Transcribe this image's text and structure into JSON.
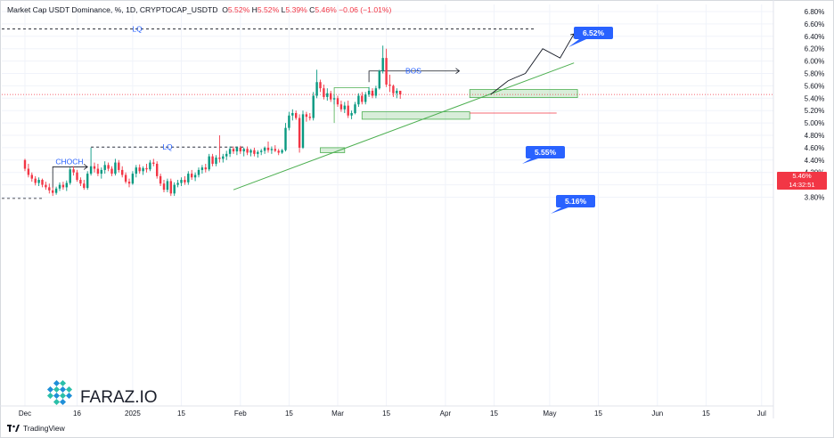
{
  "legend": {
    "symbol": "Market Cap USDT Dominance, %, 1D, CRYPTOCAP_USDTD",
    "o_label": "O",
    "o_value": "5.52%",
    "h_label": "H",
    "h_value": "5.52%",
    "l_label": "L",
    "l_value": "5.39%",
    "c_label": "C",
    "c_value": "5.46%",
    "change": "−0.06 (−1.01%)"
  },
  "last_price": {
    "value": "5.46%",
    "countdown": "14:32:51"
  },
  "footer": {
    "brand": "TradingView"
  },
  "watermark": {
    "text": "FARAZ.IO"
  },
  "colors": {
    "up": "#089981",
    "down": "#f23645",
    "annotation": "#2962ff",
    "zone": "#4caf50",
    "trendline": "#4caf50"
  },
  "chart_data": {
    "type": "candlestick",
    "y_scale": {
      "min": 3.7,
      "max": 6.85,
      "unit": "%"
    },
    "y_ticks": [
      "6.80%",
      "6.60%",
      "6.40%",
      "6.20%",
      "6.00%",
      "5.80%",
      "5.60%",
      "5.40%",
      "5.20%",
      "5.00%",
      "4.80%",
      "4.60%",
      "4.40%",
      "4.20%",
      "4.00%",
      "3.80%"
    ],
    "y_tick_values": [
      6.8,
      6.6,
      6.4,
      6.2,
      6.0,
      5.8,
      5.6,
      5.4,
      5.2,
      5.0,
      4.8,
      4.6,
      4.4,
      4.2,
      4.0,
      3.8
    ],
    "x_ticks": [
      {
        "label": "Dec",
        "day": 0
      },
      {
        "label": "16",
        "day": 15
      },
      {
        "label": "2025",
        "day": 31
      },
      {
        "label": "15",
        "day": 45
      },
      {
        "label": "Feb",
        "day": 62
      },
      {
        "label": "15",
        "day": 76
      },
      {
        "label": "Mar",
        "day": 90
      },
      {
        "label": "15",
        "day": 104
      },
      {
        "label": "Apr",
        "day": 121
      },
      {
        "label": "15",
        "day": 135
      },
      {
        "label": "May",
        "day": 151
      },
      {
        "label": "15",
        "day": 165
      },
      {
        "label": "Jun",
        "day": 182
      },
      {
        "label": "15",
        "day": 196
      },
      {
        "label": "Jul",
        "day": 212
      }
    ],
    "x_start": "2024-12-01",
    "candles": [
      [
        4.4,
        4.42,
        4.22,
        4.26
      ],
      [
        4.26,
        4.34,
        4.12,
        4.16
      ],
      [
        4.16,
        4.2,
        4.05,
        4.1
      ],
      [
        4.1,
        4.14,
        3.99,
        4.03
      ],
      [
        4.03,
        4.12,
        3.98,
        4.08
      ],
      [
        4.08,
        4.1,
        3.96,
        4.0
      ],
      [
        4.0,
        4.05,
        3.92,
        3.96
      ],
      [
        3.96,
        4.02,
        3.86,
        3.91
      ],
      [
        3.91,
        3.96,
        3.82,
        3.87
      ],
      [
        3.87,
        3.97,
        3.84,
        3.94
      ],
      [
        3.94,
        4.04,
        3.9,
        4.0
      ],
      [
        4.0,
        4.05,
        3.92,
        3.96
      ],
      [
        3.96,
        4.07,
        3.9,
        4.03
      ],
      [
        4.03,
        4.28,
        4.0,
        4.25
      ],
      [
        4.25,
        4.3,
        4.15,
        4.2
      ],
      [
        4.2,
        4.24,
        4.05,
        4.08
      ],
      [
        4.08,
        4.12,
        3.98,
        4.02
      ],
      [
        4.02,
        4.08,
        3.92,
        3.95
      ],
      [
        3.95,
        4.22,
        3.92,
        4.18
      ],
      [
        4.18,
        4.6,
        4.15,
        4.3
      ],
      [
        4.3,
        4.36,
        4.2,
        4.26
      ],
      [
        4.26,
        4.34,
        4.14,
        4.18
      ],
      [
        4.18,
        4.28,
        4.1,
        4.24
      ],
      [
        4.24,
        4.38,
        4.18,
        4.32
      ],
      [
        4.32,
        4.36,
        4.22,
        4.26
      ],
      [
        4.26,
        4.3,
        4.14,
        4.18
      ],
      [
        4.18,
        4.42,
        4.15,
        4.36
      ],
      [
        4.36,
        4.4,
        4.2,
        4.24
      ],
      [
        4.24,
        4.3,
        4.12,
        4.16
      ],
      [
        4.16,
        4.2,
        4.02,
        4.05
      ],
      [
        4.05,
        4.1,
        3.96,
        4.02
      ],
      [
        4.02,
        4.22,
        4.0,
        4.18
      ],
      [
        4.18,
        4.32,
        4.12,
        4.28
      ],
      [
        4.28,
        4.33,
        4.18,
        4.22
      ],
      [
        4.22,
        4.3,
        4.16,
        4.27
      ],
      [
        4.27,
        4.34,
        4.2,
        4.25
      ],
      [
        4.25,
        4.4,
        4.22,
        4.36
      ],
      [
        4.36,
        4.42,
        4.3,
        4.34
      ],
      [
        4.34,
        4.38,
        4.1,
        4.14
      ],
      [
        4.14,
        4.18,
        3.98,
        4.02
      ],
      [
        4.02,
        4.08,
        3.88,
        3.92
      ],
      [
        3.92,
        4.1,
        3.88,
        4.06
      ],
      [
        4.06,
        4.1,
        3.82,
        3.86
      ],
      [
        3.86,
        4.04,
        3.82,
        4.0
      ],
      [
        4.0,
        4.08,
        3.96,
        4.03
      ],
      [
        4.03,
        4.12,
        3.98,
        4.08
      ],
      [
        4.08,
        4.14,
        4.0,
        4.04
      ],
      [
        4.04,
        4.22,
        4.0,
        4.18
      ],
      [
        4.18,
        4.24,
        4.08,
        4.12
      ],
      [
        4.12,
        4.2,
        4.06,
        4.16
      ],
      [
        4.16,
        4.28,
        4.12,
        4.24
      ],
      [
        4.24,
        4.32,
        4.18,
        4.28
      ],
      [
        4.28,
        4.34,
        4.2,
        4.25
      ],
      [
        4.25,
        4.5,
        4.22,
        4.46
      ],
      [
        4.46,
        4.5,
        4.3,
        4.34
      ],
      [
        4.34,
        4.48,
        4.3,
        4.44
      ],
      [
        4.44,
        4.8,
        4.36,
        4.42
      ],
      [
        4.42,
        4.5,
        4.36,
        4.46
      ],
      [
        4.46,
        4.55,
        4.4,
        4.5
      ],
      [
        4.5,
        4.62,
        4.45,
        4.58
      ],
      [
        4.58,
        4.62,
        4.5,
        4.54
      ],
      [
        4.54,
        4.62,
        4.48,
        4.6
      ],
      [
        4.6,
        4.63,
        4.5,
        4.54
      ],
      [
        4.54,
        4.6,
        4.46,
        4.58
      ],
      [
        4.58,
        4.62,
        4.48,
        4.52
      ],
      [
        4.52,
        4.58,
        4.46,
        4.56
      ],
      [
        4.56,
        4.6,
        4.46,
        4.5
      ],
      [
        4.5,
        4.56,
        4.44,
        4.53
      ],
      [
        4.53,
        4.58,
        4.48,
        4.55
      ],
      [
        4.55,
        4.62,
        4.5,
        4.6
      ],
      [
        4.6,
        4.7,
        4.52,
        4.56
      ],
      [
        4.56,
        4.62,
        4.5,
        4.58
      ],
      [
        4.58,
        4.64,
        4.53,
        4.55
      ],
      [
        4.55,
        4.58,
        4.48,
        4.52
      ],
      [
        4.52,
        4.58,
        4.5,
        4.56
      ],
      [
        4.56,
        5.0,
        4.54,
        4.92
      ],
      [
        4.92,
        5.18,
        4.88,
        5.12
      ],
      [
        5.12,
        5.22,
        5.04,
        5.16
      ],
      [
        5.16,
        5.2,
        5.05,
        5.08
      ],
      [
        5.08,
        5.14,
        4.52,
        4.6
      ],
      [
        4.6,
        5.2,
        4.58,
        5.14
      ],
      [
        5.14,
        5.18,
        5.02,
        5.1
      ],
      [
        5.1,
        5.16,
        5.04,
        5.08
      ],
      [
        5.08,
        5.5,
        5.04,
        5.44
      ],
      [
        5.44,
        5.86,
        5.4,
        5.66
      ],
      [
        5.66,
        5.7,
        5.5,
        5.56
      ],
      [
        5.56,
        5.62,
        5.38,
        5.42
      ],
      [
        5.42,
        5.56,
        5.36,
        5.48
      ],
      [
        5.48,
        5.52,
        5.34,
        5.38
      ],
      [
        5.38,
        5.46,
        5.3,
        5.4
      ],
      [
        5.4,
        5.44,
        5.26,
        5.3
      ],
      [
        5.3,
        5.36,
        5.18,
        5.22
      ],
      [
        5.22,
        5.34,
        5.16,
        5.28
      ],
      [
        5.28,
        5.36,
        5.08,
        5.12
      ],
      [
        5.12,
        5.2,
        5.06,
        5.16
      ],
      [
        5.16,
        5.34,
        5.14,
        5.3
      ],
      [
        5.3,
        5.48,
        5.26,
        5.44
      ],
      [
        5.44,
        5.5,
        5.3,
        5.34
      ],
      [
        5.34,
        5.5,
        5.3,
        5.46
      ],
      [
        5.46,
        5.58,
        5.42,
        5.52
      ],
      [
        5.52,
        5.56,
        5.4,
        5.44
      ],
      [
        5.44,
        5.6,
        5.4,
        5.56
      ],
      [
        5.56,
        5.86,
        5.54,
        5.84
      ],
      [
        5.84,
        6.25,
        5.8,
        6.05
      ],
      [
        6.05,
        6.2,
        5.58,
        5.62
      ],
      [
        5.62,
        5.78,
        5.5,
        5.6
      ],
      [
        5.6,
        5.62,
        5.42,
        5.48
      ],
      [
        5.48,
        5.56,
        5.4,
        5.52
      ],
      [
        5.52,
        5.52,
        5.39,
        5.46
      ]
    ],
    "annotations": {
      "lq_top": {
        "text": "LQ",
        "value": 6.52
      },
      "lq_mid": {
        "text": "LQ",
        "value": 4.61
      },
      "choch": {
        "text": "CHOCH",
        "value": 4.29
      },
      "bos": {
        "text": "BOS",
        "value": 5.84
      },
      "target_high": {
        "text": "6.52%"
      },
      "target_mid": {
        "text": "5.55%"
      },
      "target_low": {
        "text": "5.16%"
      }
    }
  }
}
